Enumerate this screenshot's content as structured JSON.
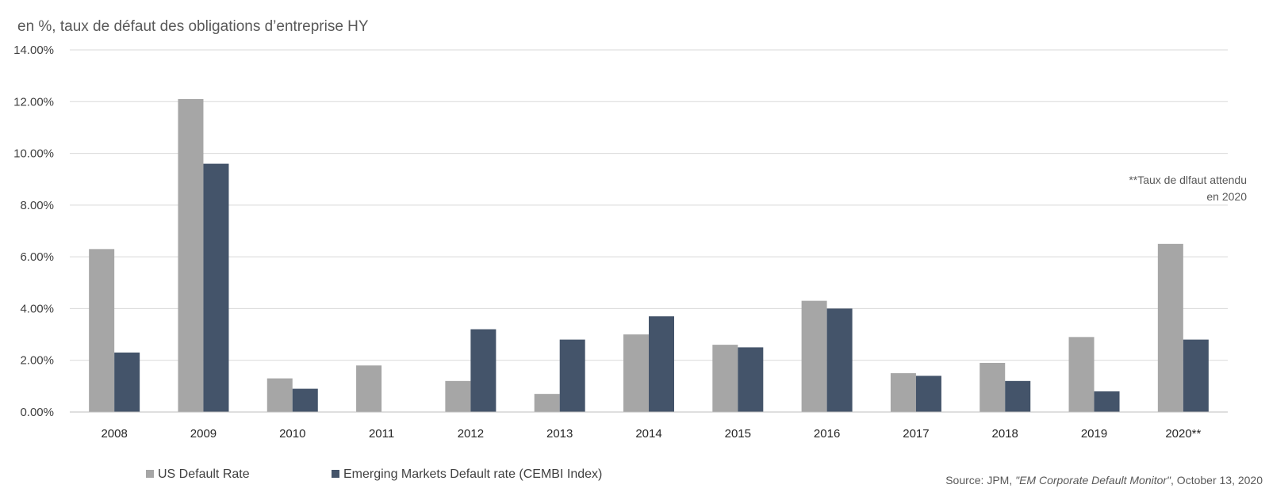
{
  "chart_data": {
    "type": "bar",
    "subtitle": "en %, taux de défaut des obligations d’entreprise HY",
    "categories": [
      "2008",
      "2009",
      "2010",
      "2011",
      "2012",
      "2013",
      "2014",
      "2015",
      "2016",
      "2017",
      "2018",
      "2019",
      "2020**"
    ],
    "series": [
      {
        "name": "US Default Rate",
        "color": "#a6a6a6",
        "values": [
          6.3,
          12.1,
          1.3,
          1.8,
          1.2,
          0.7,
          3.0,
          2.6,
          4.3,
          1.5,
          1.9,
          2.9,
          6.5
        ]
      },
      {
        "name": "Emerging Markets Default rate (CEMBI Index)",
        "color": "#44546a",
        "values": [
          2.3,
          9.6,
          0.9,
          0.0,
          3.2,
          2.8,
          3.7,
          2.5,
          4.0,
          1.4,
          1.2,
          0.8,
          2.8
        ]
      }
    ],
    "ylim": [
      0,
      14
    ],
    "yticks": [
      0,
      2,
      4,
      6,
      8,
      10,
      12,
      14
    ],
    "ytick_labels": [
      "0.00%",
      "2.00%",
      "4.00%",
      "6.00%",
      "8.00%",
      "10.00%",
      "12.00%",
      "14.00%"
    ],
    "grid": true,
    "legend_position": "bottom-left",
    "note_lines": [
      "**Taux de dlfaut attendu",
      "en 2020"
    ],
    "source_prefix": "Source: JPM, ",
    "source_title": "\"EM Corporate Default Monitor\"",
    "source_suffix": ", October 13, 2020"
  }
}
